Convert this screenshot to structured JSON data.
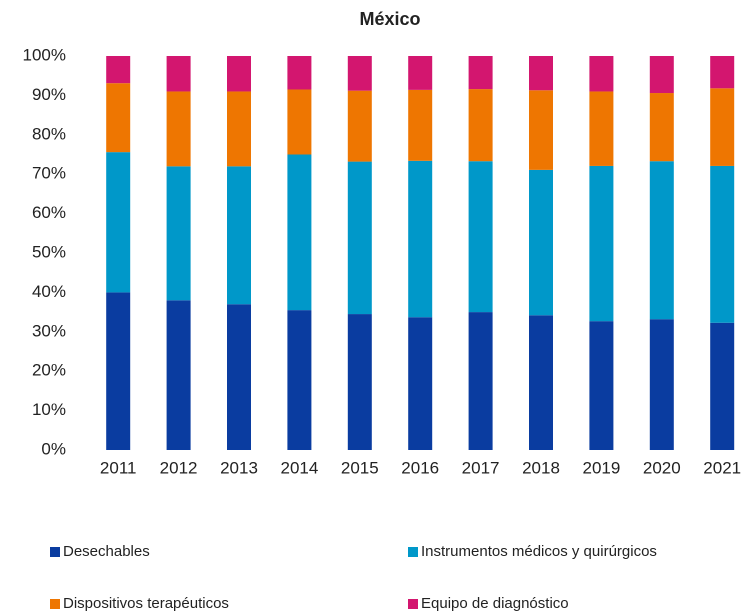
{
  "chart_data": {
    "type": "stacked_bar",
    "title": "México",
    "categories": [
      "2011",
      "2012",
      "2013",
      "2014",
      "2015",
      "2016",
      "2017",
      "2018",
      "2019",
      "2020",
      "2021"
    ],
    "series": [
      {
        "name": "Desechables",
        "color": "#0a3ca0",
        "values": [
          40,
          38,
          37,
          35.5,
          34.5,
          33.7,
          35,
          34.2,
          32.7,
          33.2,
          32.3
        ]
      },
      {
        "name": "Instrumentos médicos y quirúrgicos",
        "color": "#0098c9",
        "values": [
          35.6,
          34,
          35,
          39.5,
          38.7,
          39.7,
          38.3,
          36.9,
          39.4,
          40.1,
          39.8
        ]
      },
      {
        "name": "Dispositivos terapéuticos",
        "color": "#ee7601",
        "values": [
          17.5,
          19,
          19,
          16.5,
          18,
          18,
          18.3,
          20.2,
          18.9,
          17.3,
          19.7
        ]
      },
      {
        "name": "Equipo de diagnóstico",
        "color": "#d3166f",
        "values": [
          6.9,
          9,
          9,
          8.5,
          8.8,
          8.6,
          8.4,
          8.7,
          9,
          9.4,
          8.2
        ]
      }
    ],
    "ylim": [
      0,
      100
    ],
    "yticks": [
      {
        "value": 0,
        "label": "0%"
      },
      {
        "value": 10,
        "label": "10%"
      },
      {
        "value": 20,
        "label": "20%"
      },
      {
        "value": 30,
        "label": "30%"
      },
      {
        "value": 40,
        "label": "40%"
      },
      {
        "value": 50,
        "label": "50%"
      },
      {
        "value": 60,
        "label": "60%"
      },
      {
        "value": 70,
        "label": "70%"
      },
      {
        "value": 80,
        "label": "80%"
      },
      {
        "value": 90,
        "label": "90%"
      },
      {
        "value": 100,
        "label": "100%"
      }
    ],
    "legend": "bottom"
  }
}
